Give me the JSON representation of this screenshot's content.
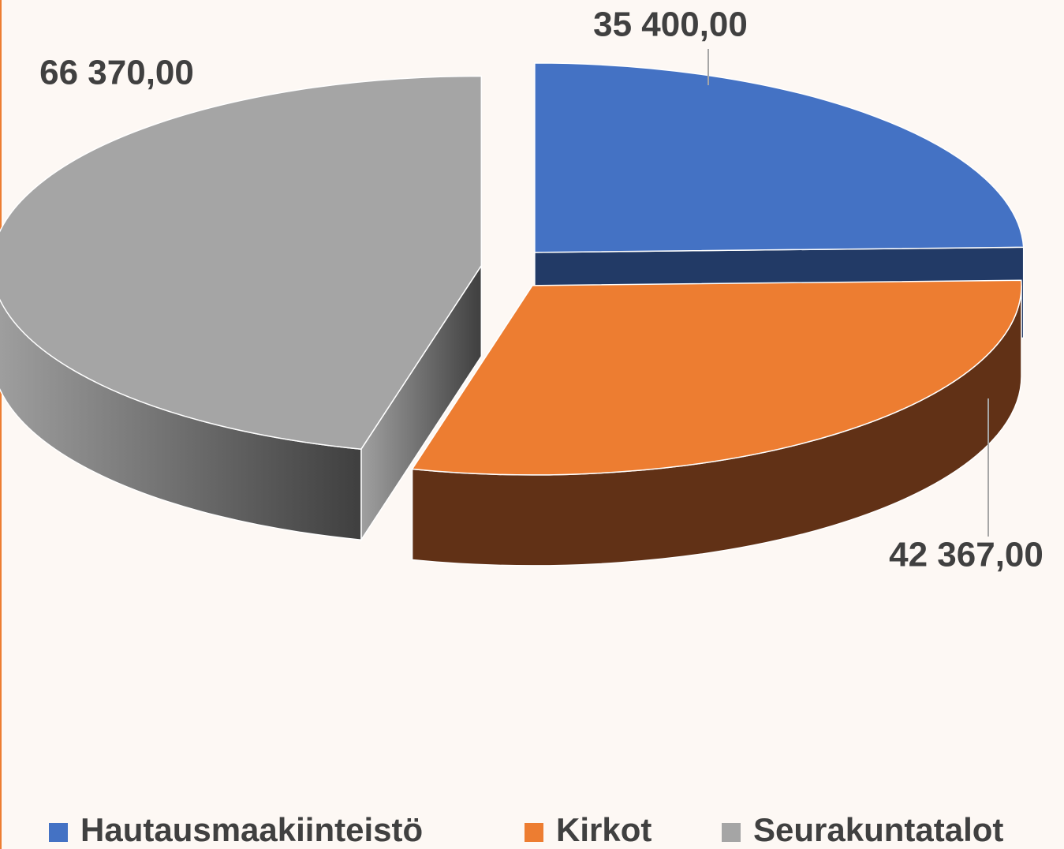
{
  "chart_data": {
    "type": "pie",
    "categories": [
      "Hautausmaakiinteistö",
      "Kirkot",
      "Seurakuntatalot"
    ],
    "values": [
      35400,
      42367,
      66370
    ],
    "value_labels": [
      "35 400,00",
      "42 367,00",
      "66 370,00"
    ],
    "colors": [
      "#4472c4",
      "#ed7d31",
      "#a5a5a5"
    ],
    "legend": "bottom"
  }
}
